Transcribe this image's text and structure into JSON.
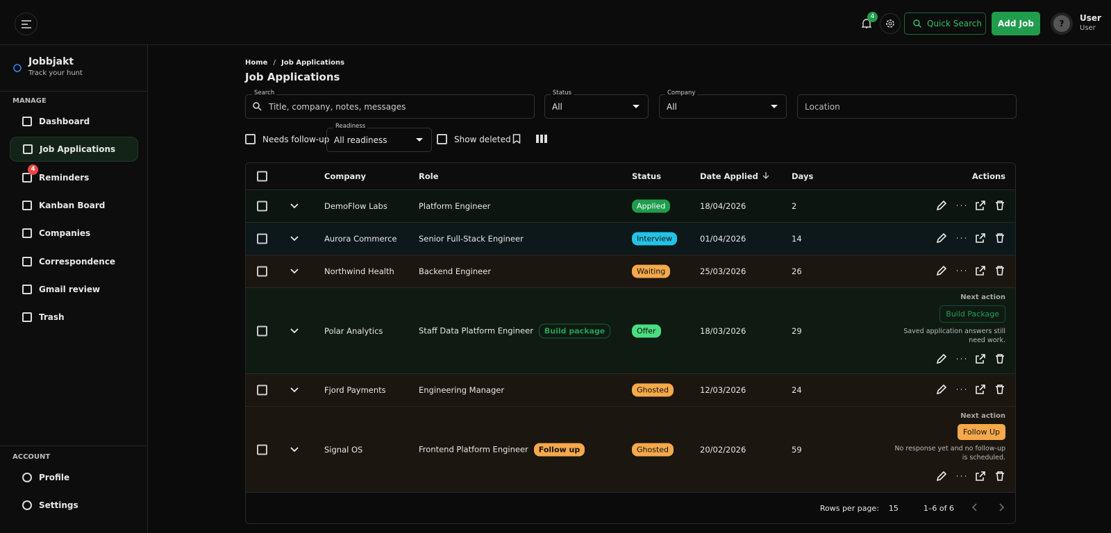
{
  "topbar": {
    "notification_count": "4",
    "search": "Quick Search",
    "add_button": "Add Job",
    "user_name": "User",
    "user_role": "User"
  },
  "sidebar": {
    "app_name": "Jobbjakt",
    "tagline": "Track your hunt",
    "manage_heading": "MANAGE",
    "nav": [
      "Dashboard",
      "Job Applications",
      "Reminders",
      "Kanban Board",
      "Companies",
      "Correspondence",
      "Gmail review",
      "Trash"
    ],
    "reminder_count": "4",
    "account_heading": "ACCOUNT",
    "account_nav": [
      "Profile",
      "Settings"
    ]
  },
  "breadcrumb": [
    "Home",
    "Job Applications"
  ],
  "breadcrumb_separator": "/",
  "page_title": "Job Applications",
  "filters": {
    "search_label": "Search",
    "search_placeholder": "Title, company, notes, messages",
    "status_label": "Status",
    "status_value": "All",
    "company_label": "Company",
    "company_value": "All",
    "location_placeholder": "Location",
    "needs_follow_up": "Needs follow-up",
    "readiness_label": "Readiness",
    "readiness_value": "All readiness",
    "show_deleted": "Show deleted"
  },
  "table": {
    "columns": [
      "Company",
      "Role",
      "Status",
      "Date Applied",
      "Days",
      "Actions"
    ],
    "rows": [
      {
        "company": "DemoFlow Labs",
        "role": "Platform Engineer",
        "status": "Applied",
        "status_color": "#1f9d4c",
        "date": "18/04/2026",
        "days": 2
      },
      {
        "company": "Aurora Commerce",
        "role": "Senior Full-Stack Engineer",
        "status": "Interview",
        "status_color": "#22c3e6",
        "date": "01/04/2026",
        "days": 14
      },
      {
        "company": "Northwind Health",
        "role": "Backend Engineer",
        "status": "Waiting",
        "status_color": "#f5a94a",
        "date": "25/03/2026",
        "days": 26
      },
      {
        "company": "Polar Analytics",
        "role": "Staff Data Platform Engineer",
        "badge": "Build package",
        "badge_color": "#22a055",
        "badge_style": "outline",
        "status": "Offer",
        "status_color": "#4ade80",
        "date": "18/03/2026",
        "days": 29,
        "next_action_heading": "Next action",
        "next_action_button": "Build Package",
        "next_action_note": "Saved application answers still need work."
      },
      {
        "company": "Fjord Payments",
        "role": "Engineering Manager",
        "status": "Ghosted",
        "status_color": "#f5a94a",
        "date": "12/03/2026",
        "days": 24
      },
      {
        "company": "Signal OS",
        "role": "Frontend Platform Engineer",
        "badge": "Follow up",
        "badge_color": "#f5a94a",
        "badge_style": "filled",
        "status": "Ghosted",
        "status_color": "#f5a94a",
        "date": "20/02/2026",
        "days": 59,
        "next_action_heading": "Next action",
        "next_action_button": "Follow Up",
        "next_action_note": "No response yet and no follow-up is scheduled."
      }
    ]
  },
  "pagination": {
    "rows_per_page_label": "Rows per page:",
    "rows_per_page": "15",
    "range": "1–6 of 6"
  }
}
